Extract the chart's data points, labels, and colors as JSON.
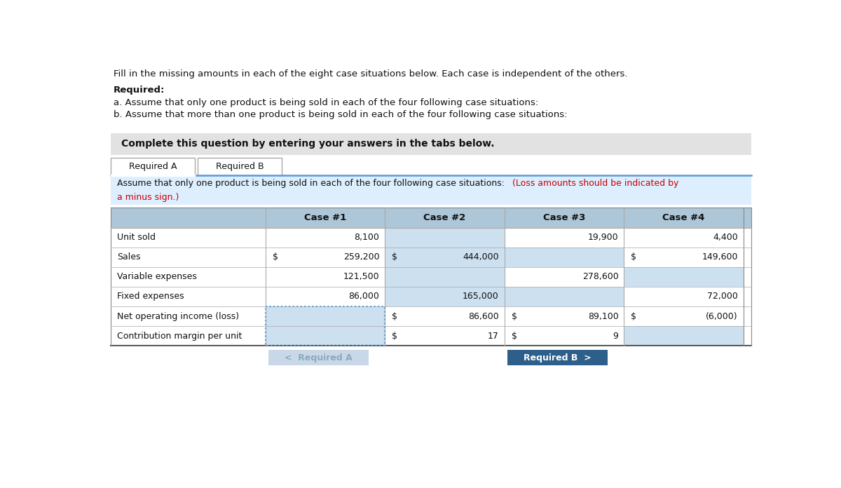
{
  "title_line": "Fill in the missing amounts in each of the eight case situations below. Each case is independent of the others.",
  "required_label": "Required:",
  "req_a": "a. Assume that only one product is being sold in each of the four following case situations:",
  "req_b": "b. Assume that more than one product is being sold in each of the four following case situations:",
  "complete_text": "Complete this question by entering your answers in the tabs below.",
  "tab_a": "Required A",
  "tab_b": "Required B",
  "col_headers": [
    "Case #1",
    "Case #2",
    "Case #3",
    "Case #4"
  ],
  "row_labels": [
    "Unit sold",
    "Sales",
    "Variable expenses",
    "Fixed expenses",
    "Net operating income (loss)",
    "Contribution margin per unit"
  ],
  "header_bg": "#adc6d8",
  "blue_highlight": "#cce0f0",
  "complete_bg": "#e2e2e2",
  "instr_bg": "#ddeeff",
  "btn_a_bg": "#c8d8e8",
  "btn_a_fg": "#8aaabb",
  "btn_b_bg": "#2d5f8a",
  "btn_b_fg": "#ffffff",
  "table_cells": [
    [
      [
        "",
        "8,100",
        false
      ],
      [
        "",
        "",
        true
      ],
      [
        "",
        "19,900",
        false
      ],
      [
        "",
        "4,400",
        false
      ]
    ],
    [
      [
        "$",
        "259,200",
        false
      ],
      [
        "$",
        "444,000",
        true
      ],
      [
        "",
        "",
        true
      ],
      [
        "$",
        "149,600",
        false
      ]
    ],
    [
      [
        "",
        "121,500",
        false
      ],
      [
        "",
        "",
        true
      ],
      [
        "",
        "278,600",
        false
      ],
      [
        "",
        "",
        true
      ]
    ],
    [
      [
        "",
        "86,000",
        false
      ],
      [
        "",
        "165,000",
        true
      ],
      [
        "",
        "",
        true
      ],
      [
        "",
        "72,000",
        false
      ]
    ],
    [
      [
        "",
        "",
        true
      ],
      [
        "$",
        "86,600",
        false
      ],
      [
        "$",
        "89,100",
        false
      ],
      [
        "$",
        "(6,000)",
        false
      ]
    ],
    [
      [
        "",
        "",
        true
      ],
      [
        "$",
        "17",
        false
      ],
      [
        "$",
        "9",
        false
      ],
      [
        "",
        "",
        true
      ]
    ]
  ]
}
